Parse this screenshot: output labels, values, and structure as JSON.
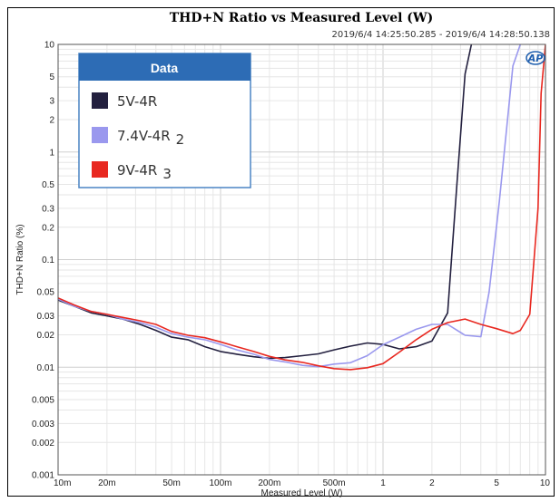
{
  "chart_data": {
    "type": "line",
    "title": "THD+N Ratio vs Measured Level (W)",
    "timestamp": "2019/6/4 14:25:50.285 - 2019/6/4 14:28:50.138",
    "xlabel": "Measured Level (W)",
    "ylabel": "THD+N Ratio (%)",
    "x_scale": "log",
    "y_scale": "log",
    "xlim": [
      0.01,
      10
    ],
    "ylim": [
      0.001,
      10
    ],
    "grid": true,
    "x_ticks": [
      {
        "v": 0.01,
        "label": "10m"
      },
      {
        "v": 0.02,
        "label": "20m"
      },
      {
        "v": 0.05,
        "label": "50m"
      },
      {
        "v": 0.1,
        "label": "100m"
      },
      {
        "v": 0.2,
        "label": "200m"
      },
      {
        "v": 0.5,
        "label": "500m"
      },
      {
        "v": 1,
        "label": "1"
      },
      {
        "v": 2,
        "label": "2"
      },
      {
        "v": 5,
        "label": "5"
      },
      {
        "v": 10,
        "label": "10"
      }
    ],
    "y_ticks": [
      {
        "v": 10,
        "label": "10"
      },
      {
        "v": 5,
        "label": "5"
      },
      {
        "v": 3,
        "label": "3"
      },
      {
        "v": 2,
        "label": "2"
      },
      {
        "v": 1,
        "label": "1"
      },
      {
        "v": 0.5,
        "label": "0.5"
      },
      {
        "v": 0.3,
        "label": "0.3"
      },
      {
        "v": 0.2,
        "label": "0.2"
      },
      {
        "v": 0.1,
        "label": "0.1"
      },
      {
        "v": 0.05,
        "label": "0.05"
      },
      {
        "v": 0.03,
        "label": "0.03"
      },
      {
        "v": 0.02,
        "label": "0.02"
      },
      {
        "v": 0.01,
        "label": "0.01"
      },
      {
        "v": 0.005,
        "label": "0.005"
      },
      {
        "v": 0.003,
        "label": "0.003"
      },
      {
        "v": 0.002,
        "label": "0.002"
      },
      {
        "v": 0.001,
        "label": "0.001"
      }
    ],
    "legend": {
      "title": "Data",
      "position": "top-left",
      "entries": [
        {
          "text": "5V-4R",
          "suffix": ""
        },
        {
          "text": "7.4V-4R",
          "suffix": "2"
        },
        {
          "text": "9V-4R",
          "suffix": "3"
        }
      ]
    },
    "series": [
      {
        "color": "#23203f",
        "points": [
          [
            0.01,
            0.042
          ],
          [
            0.0125,
            0.037
          ],
          [
            0.016,
            0.032
          ],
          [
            0.02,
            0.03
          ],
          [
            0.025,
            0.028
          ],
          [
            0.032,
            0.025
          ],
          [
            0.04,
            0.022
          ],
          [
            0.05,
            0.019
          ],
          [
            0.063,
            0.018
          ],
          [
            0.08,
            0.0155
          ],
          [
            0.1,
            0.014
          ],
          [
            0.126,
            0.0132
          ],
          [
            0.16,
            0.0125
          ],
          [
            0.2,
            0.0121
          ],
          [
            0.25,
            0.0123
          ],
          [
            0.32,
            0.0128
          ],
          [
            0.4,
            0.0133
          ],
          [
            0.5,
            0.0145
          ],
          [
            0.63,
            0.0157
          ],
          [
            0.8,
            0.0168
          ],
          [
            1.0,
            0.0163
          ],
          [
            1.26,
            0.0148
          ],
          [
            1.6,
            0.0155
          ],
          [
            2.0,
            0.0175
          ],
          [
            2.5,
            0.032
          ],
          [
            2.85,
            0.5
          ],
          [
            3.2,
            5.3
          ],
          [
            3.5,
            10
          ]
        ]
      },
      {
        "color": "#9a98ee",
        "points": [
          [
            0.01,
            0.043
          ],
          [
            0.0125,
            0.037
          ],
          [
            0.016,
            0.033
          ],
          [
            0.02,
            0.031
          ],
          [
            0.025,
            0.028
          ],
          [
            0.032,
            0.026
          ],
          [
            0.04,
            0.0235
          ],
          [
            0.05,
            0.0205
          ],
          [
            0.063,
            0.019
          ],
          [
            0.08,
            0.018
          ],
          [
            0.1,
            0.0163
          ],
          [
            0.126,
            0.0145
          ],
          [
            0.16,
            0.0132
          ],
          [
            0.2,
            0.0118
          ],
          [
            0.25,
            0.0112
          ],
          [
            0.32,
            0.0104
          ],
          [
            0.4,
            0.0101
          ],
          [
            0.5,
            0.0107
          ],
          [
            0.63,
            0.011
          ],
          [
            0.8,
            0.0128
          ],
          [
            1.0,
            0.0162
          ],
          [
            1.26,
            0.019
          ],
          [
            1.6,
            0.0225
          ],
          [
            2.0,
            0.025
          ],
          [
            2.5,
            0.025
          ],
          [
            3.2,
            0.0198
          ],
          [
            4.0,
            0.0192
          ],
          [
            4.5,
            0.05
          ],
          [
            5.2,
            0.35
          ],
          [
            6.3,
            6.3
          ],
          [
            7.0,
            10
          ]
        ]
      },
      {
        "color": "#e82820",
        "points": [
          [
            0.01,
            0.044
          ],
          [
            0.0125,
            0.038
          ],
          [
            0.016,
            0.033
          ],
          [
            0.02,
            0.031
          ],
          [
            0.025,
            0.029
          ],
          [
            0.032,
            0.027
          ],
          [
            0.04,
            0.025
          ],
          [
            0.05,
            0.0215
          ],
          [
            0.063,
            0.0198
          ],
          [
            0.08,
            0.0188
          ],
          [
            0.1,
            0.0172
          ],
          [
            0.126,
            0.0155
          ],
          [
            0.16,
            0.014
          ],
          [
            0.2,
            0.0126
          ],
          [
            0.25,
            0.0117
          ],
          [
            0.32,
            0.0111
          ],
          [
            0.4,
            0.0103
          ],
          [
            0.5,
            0.0097
          ],
          [
            0.63,
            0.0095
          ],
          [
            0.8,
            0.0099
          ],
          [
            1.0,
            0.0108
          ],
          [
            1.26,
            0.0138
          ],
          [
            1.6,
            0.018
          ],
          [
            2.0,
            0.0225
          ],
          [
            2.5,
            0.026
          ],
          [
            3.2,
            0.028
          ],
          [
            4.0,
            0.025
          ],
          [
            5.0,
            0.0228
          ],
          [
            6.3,
            0.0205
          ],
          [
            7.0,
            0.022
          ],
          [
            8.0,
            0.031
          ],
          [
            9.0,
            0.3
          ],
          [
            9.4,
            3.5
          ],
          [
            10,
            10
          ]
        ]
      }
    ]
  }
}
